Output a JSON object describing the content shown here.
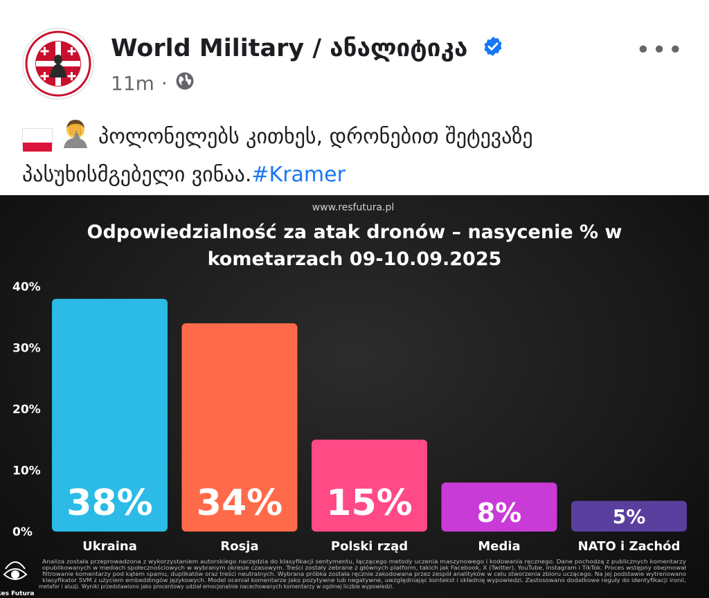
{
  "post": {
    "author": "World Military / ანალიტიკა",
    "time": "11m",
    "separator": "·",
    "more_label": "•••",
    "text": "პოლონელებს კითხეს, დრონებით შეტევაზე პასუხისმგებელი ვინაა.",
    "hashtag": "#Kramer",
    "icons": {
      "verified": "verified-badge-icon",
      "globe": "globe-icon",
      "flag": "poland-flag-icon",
      "emoji": "facepalm-emoji-icon"
    },
    "colors": {
      "link": "#1877f2",
      "verified": "#1877f2",
      "meta": "#65676b"
    }
  },
  "chart_data": {
    "type": "bar",
    "source": "www.resfutura.pl",
    "title": "Odpowiedzialność za atak dronów – nasycenie % w kometarzach 09-10.09.2025",
    "title_lines": [
      "Odpowiedzialność za atak dronów – nasycenie % w",
      "kometarzach 09-10.09.2025"
    ],
    "categories": [
      "Ukraina",
      "Rosja",
      "Polski rząd",
      "Media",
      "NATO i Zachód"
    ],
    "values": [
      38,
      34,
      15,
      8,
      5
    ],
    "labels": [
      "38%",
      "34%",
      "15%",
      "8%",
      "5%"
    ],
    "colors": [
      "#2bbbe6",
      "#ff6b4a",
      "#ff4a86",
      "#c93bd6",
      "#5a3f9e"
    ],
    "ylim": [
      0,
      40
    ],
    "yticks": [
      "0%",
      "10%",
      "20%",
      "30%",
      "40%"
    ],
    "grid": false,
    "footer_logo": "Res Futura",
    "footnote": [
      "Analiza została przeprowadzona z wykorzystaniem autorskiego narzędzia do klasyfikacji sentymentu, łączącego metody uczenia maszynowego i kodowania ręcznego. Dane pochodzą z publicznych komentarzy",
      "opublikowanych w mediach społecznościowych w wybranym okresie czasowym. Treści zostały zebrane z głównych platform, takich jak Facebook, X (Twitter), YouTube, Instagram i TikTok. Proces wstępny obejmował",
      "filtrowanie komentarzy pod kątem spamu, duplikatów oraz treści neutralnych. Wybrana próbka została ręcznie zakodowana przez zespół analityków w celu stworzenia zbioru uczącego. Na jej podstawie wytrenowano",
      "klasyfikator SVM z użyciem embeddingów językowych. Model oceniał komentarze jako pozytywne lub negatywne, uwzględniając kontekst i składnię wypowiedzi. Zastosowano dodatkowe reguły do identyfikacji ironii,",
      "metafor i aluzji. Wyniki przedstawiono jako procentowy udział emocjonalnie nacechowanych komentarzy w ogólnej liczbie wypowiedzi."
    ]
  }
}
